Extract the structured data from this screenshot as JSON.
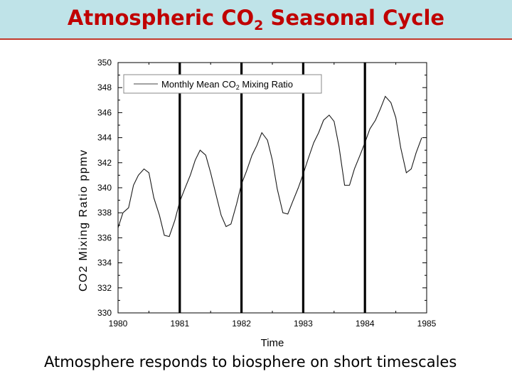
{
  "slide": {
    "title_main": "Atmospheric CO",
    "title_sub": "2",
    "title_rest": " Seasonal Cycle",
    "caption": "Atmosphere responds to biosphere on short timescales"
  },
  "colors": {
    "header_bg": "#bfe3e8",
    "title": "#c00000",
    "rule": "#c0392b",
    "series_line": "#1a1a1a",
    "year_markers": "#000000"
  },
  "chart_data": {
    "type": "line",
    "xlabel": "Time",
    "ylabel_garbled": "CO2 Mixing Ratio ppmv",
    "xlim": [
      1980,
      1985
    ],
    "ylim": [
      330,
      350
    ],
    "x_ticks": [
      "1980",
      "1981",
      "1982",
      "1983",
      "1984",
      "1985"
    ],
    "y_ticks": [
      "330",
      "332",
      "334",
      "336",
      "338",
      "340",
      "342",
      "344",
      "346",
      "348",
      "350"
    ],
    "legend": {
      "label_main": "Monthly Mean CO",
      "label_sub": "2",
      "label_rest": " Mixing Ratio",
      "position": "top-left"
    },
    "year_markers": [
      1981,
      1982,
      1983,
      1984
    ],
    "series": [
      {
        "name": "Monthly Mean CO2 Mixing Ratio",
        "x": [
          1980.0,
          1980.08,
          1980.17,
          1980.25,
          1980.33,
          1980.42,
          1980.5,
          1980.58,
          1980.67,
          1980.75,
          1980.83,
          1980.92,
          1981.0,
          1981.08,
          1981.17,
          1981.25,
          1981.33,
          1981.42,
          1981.5,
          1981.58,
          1981.67,
          1981.75,
          1981.83,
          1981.92,
          1982.0,
          1982.08,
          1982.17,
          1982.25,
          1982.33,
          1982.42,
          1982.5,
          1982.58,
          1982.67,
          1982.75,
          1982.83,
          1982.92,
          1983.0,
          1983.08,
          1983.17,
          1983.25,
          1983.33,
          1983.42,
          1983.5,
          1983.58,
          1983.67,
          1983.75,
          1983.83,
          1983.92,
          1984.0,
          1984.08,
          1984.17,
          1984.25,
          1984.33,
          1984.42,
          1984.5,
          1984.58,
          1984.67,
          1984.75,
          1984.83,
          1984.92
        ],
        "y": [
          336.8,
          338.0,
          338.4,
          340.2,
          341.0,
          341.5,
          341.2,
          339.2,
          337.8,
          336.2,
          336.1,
          337.4,
          338.9,
          339.9,
          341.0,
          342.2,
          343.0,
          342.6,
          341.2,
          339.6,
          337.8,
          336.9,
          337.1,
          338.7,
          340.3,
          341.3,
          342.6,
          343.4,
          344.4,
          343.8,
          342.2,
          339.9,
          338.0,
          337.9,
          338.9,
          340.0,
          341.1,
          342.3,
          343.6,
          344.4,
          345.4,
          345.8,
          345.3,
          343.3,
          340.2,
          340.2,
          341.5,
          342.6,
          343.6,
          344.7,
          345.4,
          346.3,
          347.3,
          346.8,
          345.6,
          343.2,
          341.2,
          341.5,
          342.8,
          344.0
        ]
      }
    ]
  }
}
